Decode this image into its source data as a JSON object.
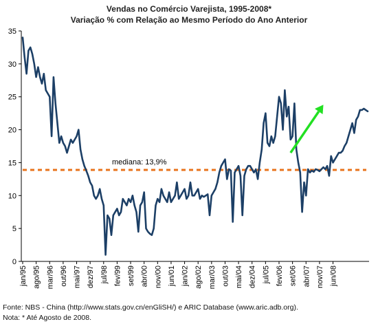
{
  "title": "Vendas no Comércio Varejista, 1995-2008*",
  "subtitle": "Variação % com Relação ao Mesmo Período do Ano Anterior",
  "footnotes": {
    "source": "Fonte: NBS - China (http://www.stats.gov.cn/enGliSH/) e ARIC Database (www.aric.adb.org).",
    "note": "Nota: * Até Agosto de 2008."
  },
  "colors": {
    "series": "#1c3f66",
    "median_line": "#e8731c",
    "arrow": "#22e022",
    "axis": "#000000"
  },
  "chart_data": {
    "type": "line",
    "ylim": [
      0,
      35
    ],
    "y_ticks": [
      0,
      5,
      10,
      15,
      20,
      25,
      30,
      35
    ],
    "x_tick_labels": [
      "jan/95",
      "ago/95",
      "mar/96",
      "out/96",
      "mai/97",
      "dez/97",
      "jul/98",
      "fev/99",
      "set/99",
      "abr/00",
      "nov/00",
      "jun/01",
      "jan/02",
      "ago/02",
      "mar/03",
      "out/03",
      "mai/04",
      "dez/04",
      "jul/05",
      "fev/06",
      "set/06",
      "abr/07",
      "nov/07",
      "jun/08"
    ],
    "grid": false,
    "median": {
      "value": 13.9,
      "label": "mediana: 13,9%"
    },
    "trend_arrow": {
      "from": [
        "2006-08",
        16.5
      ],
      "to": [
        "2008-01",
        23.8
      ]
    },
    "series": [
      {
        "x_start": "1995-01",
        "frequency": "monthly",
        "values": [
          34.0,
          31.0,
          28.5,
          32.0,
          32.5,
          31.5,
          30.0,
          28.0,
          29.5,
          28.0,
          27.0,
          28.5,
          26.0,
          25.5,
          25.0,
          19.0,
          28.0,
          24.0,
          21.0,
          18.0,
          19.0,
          18.0,
          17.5,
          16.5,
          17.5,
          18.5,
          18.0,
          18.5,
          19.0,
          20.0,
          17.0,
          15.5,
          14.5,
          13.8,
          13.0,
          12.0,
          11.5,
          10.0,
          9.5,
          10.0,
          11.0,
          9.5,
          8.5,
          1.0,
          7.0,
          6.5,
          4.0,
          7.0,
          7.5,
          8.0,
          7.0,
          7.5,
          9.5,
          9.0,
          8.5,
          9.5,
          9.0,
          10.0,
          8.5,
          7.5,
          4.5,
          8.5,
          9.0,
          10.5,
          5.0,
          4.5,
          4.2,
          4.0,
          5.0,
          8.5,
          9.5,
          9.0,
          11.0,
          10.0,
          9.5,
          9.0,
          10.5,
          9.0,
          9.5,
          10.0,
          12.0,
          9.5,
          10.0,
          10.5,
          11.0,
          9.5,
          10.0,
          12.0,
          10.0,
          10.0,
          10.5,
          11.0,
          9.5,
          10.0,
          9.8,
          10.0,
          10.2,
          7.0,
          10.0,
          10.5,
          11.0,
          12.0,
          13.5,
          14.5,
          15.0,
          15.5,
          12.5,
          14.0,
          13.8,
          6.0,
          13.5,
          14.0,
          14.5,
          13.0,
          7.0,
          13.0,
          14.0,
          14.5,
          14.5,
          14.0,
          13.5,
          14.0,
          12.5,
          15.0,
          17.0,
          21.0,
          22.5,
          18.0,
          17.5,
          19.0,
          18.0,
          19.0,
          22.0,
          25.0,
          24.0,
          20.0,
          26.0,
          22.0,
          23.5,
          18.5,
          19.0,
          24.0,
          17.0,
          15.0,
          13.5,
          7.5,
          12.0,
          10.0,
          14.0,
          13.5,
          13.8,
          13.6,
          14.0,
          13.9,
          13.7,
          14.0,
          14.3,
          14.0,
          14.5,
          13.0,
          16.0,
          15.0,
          15.5,
          16.0,
          16.5,
          16.5,
          16.8,
          17.5,
          18.0,
          19.0,
          20.0,
          21.0,
          19.5,
          21.5,
          22.0,
          23.0,
          23.0,
          23.2,
          23.0,
          22.8
        ]
      }
    ]
  }
}
